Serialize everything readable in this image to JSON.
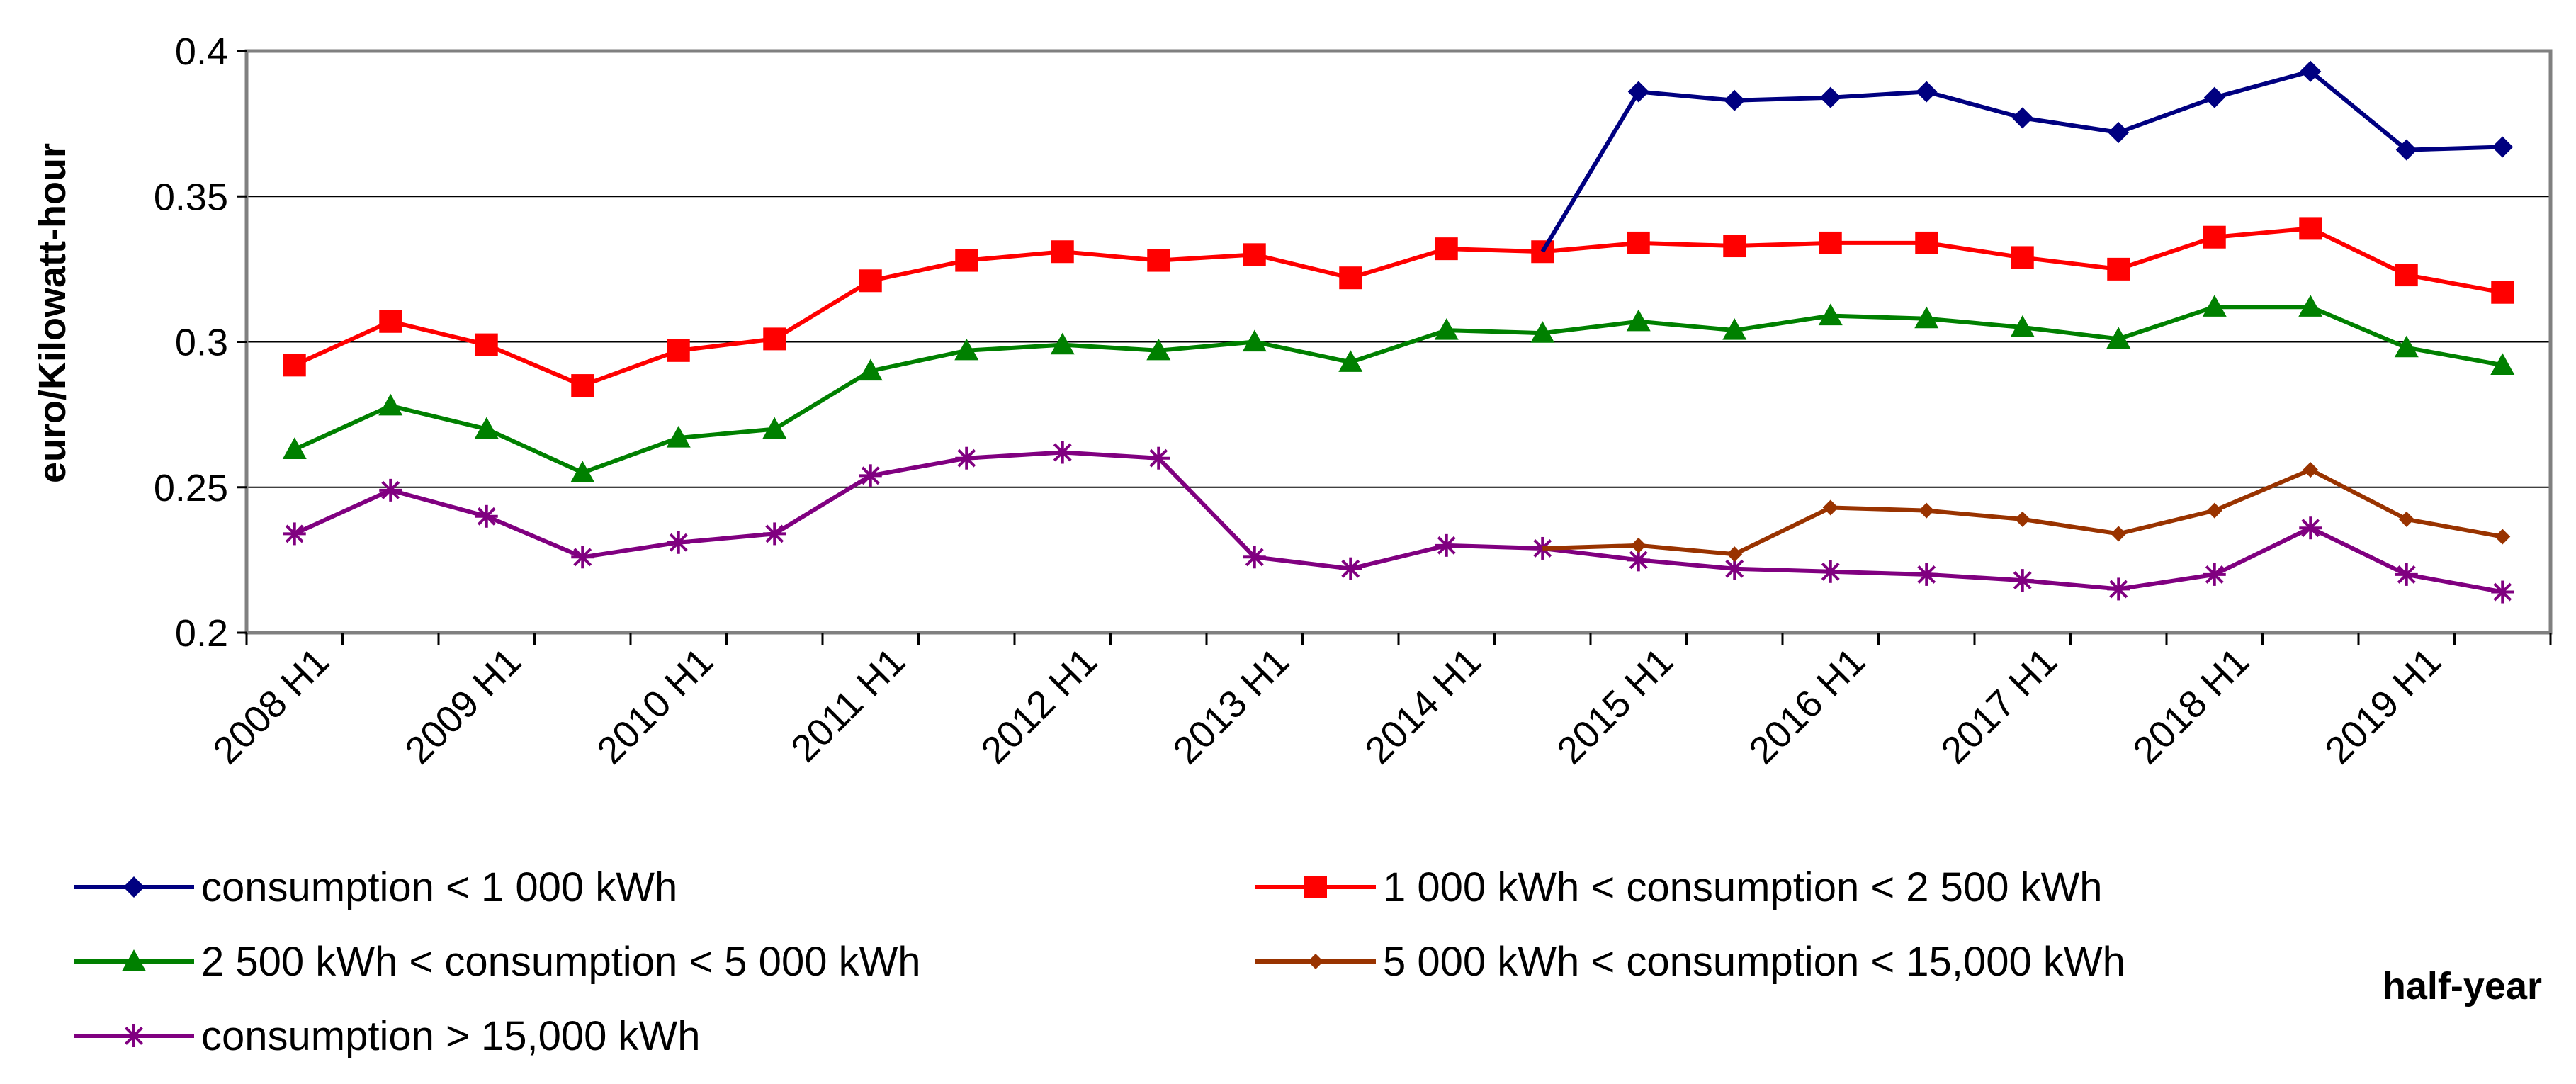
{
  "chart_data": {
    "type": "line",
    "title": "",
    "xlabel": "half-year",
    "ylabel": "euro/Kilowatt-hour",
    "ylim": [
      0.2,
      0.4
    ],
    "yticks": [
      "0.4",
      "0.35",
      "0.3",
      "0.25",
      "0.2"
    ],
    "ytick_values": [
      0.4,
      0.35,
      0.3,
      0.25,
      0.2
    ],
    "grid": true,
    "legend_position": "bottom",
    "categories": [
      "2008 H1",
      "2008 H2",
      "2009 H1",
      "2009 H2",
      "2010 H1",
      "2010 H2",
      "2011 H1",
      "2011 H2",
      "2012 H1",
      "2012 H2",
      "2013 H1",
      "2013 H2",
      "2014 H1",
      "2014 H2",
      "2015 H1",
      "2015 H2",
      "2016 H1",
      "2016 H2",
      "2017 H1",
      "2017 H2",
      "2018 H1",
      "2018 H2",
      "2019 H1",
      "2019 H2"
    ],
    "x_tick_labels": [
      "2008 H1",
      "2009 H1",
      "2010 H1",
      "2011 H1",
      "2012 H1",
      "2013 H1",
      "2014 H1",
      "2015 H1",
      "2016 H1",
      "2017 H1",
      "2018 H1",
      "2019 H1"
    ],
    "series": [
      {
        "name": "consumption < 1 000 kWh",
        "color": "#000080",
        "marker": "diamond",
        "values": [
          null,
          null,
          null,
          null,
          null,
          null,
          null,
          null,
          null,
          null,
          null,
          null,
          null,
          0.331,
          0.386,
          0.383,
          0.384,
          0.386,
          0.377,
          0.372,
          0.384,
          0.393,
          0.366,
          0.367
        ]
      },
      {
        "name": "1 000 kWh < consumption < 2 500 kWh",
        "color": "#ff0000",
        "marker": "square",
        "values": [
          0.292,
          0.307,
          0.299,
          0.285,
          0.297,
          0.301,
          0.321,
          0.328,
          0.331,
          0.328,
          0.33,
          0.322,
          0.332,
          0.331,
          0.334,
          0.333,
          0.334,
          0.334,
          0.329,
          0.325,
          0.336,
          0.339,
          0.323,
          0.317
        ]
      },
      {
        "name": "2 500 kWh < consumption < 5 000 kWh",
        "color": "#008000",
        "marker": "triangle",
        "values": [
          0.263,
          0.278,
          0.27,
          0.255,
          0.267,
          0.27,
          0.29,
          0.297,
          0.299,
          0.297,
          0.3,
          0.293,
          0.304,
          0.303,
          0.307,
          0.304,
          0.309,
          0.308,
          0.305,
          0.301,
          0.312,
          0.312,
          0.298,
          0.292
        ]
      },
      {
        "name": "5 000 kWh < consumption < 15,000 kWh",
        "color": "#993300",
        "marker": "small-diamond",
        "values": [
          null,
          null,
          null,
          null,
          null,
          null,
          null,
          null,
          null,
          null,
          null,
          null,
          null,
          0.229,
          0.23,
          0.227,
          0.243,
          0.242,
          0.239,
          0.234,
          0.242,
          0.256,
          0.239,
          0.233
        ]
      },
      {
        "name": "consumption > 15,000 kWh",
        "color": "#800080",
        "marker": "star",
        "values": [
          0.234,
          0.249,
          0.24,
          0.226,
          0.231,
          0.234,
          0.254,
          0.26,
          0.262,
          0.26,
          0.226,
          0.222,
          0.23,
          0.229,
          0.225,
          0.222,
          0.221,
          0.22,
          0.218,
          0.215,
          0.22,
          0.236,
          0.22,
          0.214
        ]
      }
    ]
  }
}
